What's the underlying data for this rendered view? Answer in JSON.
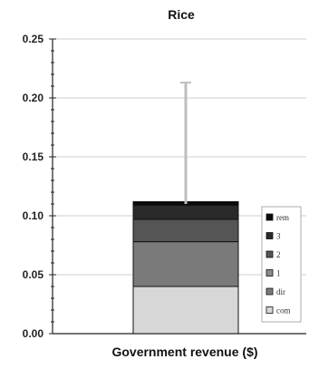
{
  "chart_data": {
    "type": "bar",
    "title": "Rice",
    "xlabel": "Government revenue ($)",
    "ylabel": "",
    "ylim": [
      0,
      0.25
    ],
    "yticks": [
      "0.00",
      "0.05",
      "0.10",
      "0.15",
      "0.20",
      "0.25"
    ],
    "grid": true,
    "stacked": true,
    "series": [
      {
        "name": "com",
        "value": 0.04,
        "color": "#d7d7d7"
      },
      {
        "name": "dir",
        "value": 0.038,
        "color": "#7a7a7a"
      },
      {
        "name": "1",
        "value": 0.0,
        "color": "#8a8a8a"
      },
      {
        "name": "2",
        "value": 0.019,
        "color": "#555555"
      },
      {
        "name": "3",
        "value": 0.012,
        "color": "#2a2a2a"
      },
      {
        "name": "rem",
        "value": 0.003,
        "color": "#0a0a0a"
      }
    ],
    "error_bar": {
      "low": 0.11,
      "high": 0.213
    },
    "legend_position": "right-inside"
  }
}
